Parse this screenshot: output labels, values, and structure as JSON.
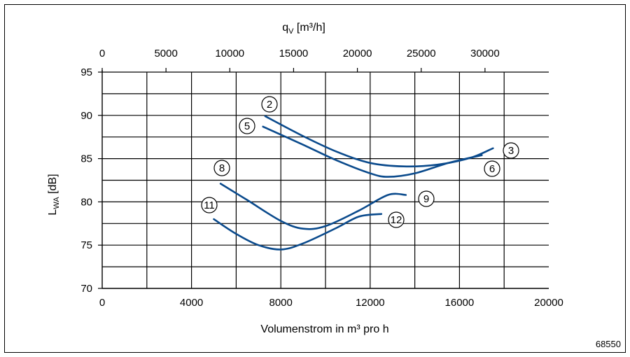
{
  "chart_data": {
    "type": "line",
    "xlabel": "Volumenstrom in m³ pro h",
    "x2label_main": "q",
    "x2label_sub": "V",
    "x2label_unit": " [m³/h]",
    "ylabel_main": "L",
    "ylabel_sub": "WA",
    "ylabel_unit": " [dB]",
    "xlim": [
      0,
      20000
    ],
    "x2lim": [
      0,
      35000
    ],
    "ylim": [
      70,
      95
    ],
    "x_ticks": [
      0,
      4000,
      8000,
      12000,
      16000,
      20000
    ],
    "x2_ticks": [
      0,
      5000,
      10000,
      15000,
      20000,
      25000,
      30000
    ],
    "y_ticks": [
      70,
      75,
      80,
      85,
      90,
      95
    ],
    "grid": true,
    "series": [
      {
        "label": "2",
        "points": [
          [
            7300,
            89.9
          ],
          [
            9000,
            87.6
          ],
          [
            10500,
            85.8
          ],
          [
            12000,
            84.5
          ],
          [
            13500,
            84.1
          ],
          [
            15000,
            84.3
          ],
          [
            16500,
            85.1
          ],
          [
            17500,
            86.2
          ]
        ]
      },
      {
        "label": "3",
        "points": [
          [
            7300,
            89.9
          ],
          [
            9000,
            87.6
          ],
          [
            10500,
            85.8
          ],
          [
            12000,
            84.5
          ],
          [
            13500,
            84.1
          ],
          [
            15000,
            84.3
          ],
          [
            16500,
            85.1
          ],
          [
            17500,
            86.2
          ]
        ]
      },
      {
        "label": "5",
        "points": [
          [
            7200,
            88.7
          ],
          [
            9000,
            86.6
          ],
          [
            10500,
            84.8
          ],
          [
            12000,
            83.3
          ],
          [
            12800,
            82.9
          ],
          [
            14000,
            83.3
          ],
          [
            15500,
            84.5
          ],
          [
            17000,
            85.4
          ]
        ]
      },
      {
        "label": "6",
        "points": [
          [
            7200,
            88.7
          ],
          [
            9000,
            86.6
          ],
          [
            10500,
            84.8
          ],
          [
            12000,
            83.3
          ],
          [
            12800,
            82.9
          ],
          [
            14000,
            83.3
          ],
          [
            15500,
            84.5
          ],
          [
            17000,
            85.4
          ]
        ]
      },
      {
        "label": "8",
        "points": [
          [
            5300,
            82.1
          ],
          [
            6500,
            80.2
          ],
          [
            8000,
            77.8
          ],
          [
            9000,
            76.9
          ],
          [
            10000,
            77.2
          ],
          [
            11500,
            79.0
          ],
          [
            12800,
            80.8
          ],
          [
            13600,
            80.8
          ]
        ]
      },
      {
        "label": "9",
        "points": [
          [
            5300,
            82.1
          ],
          [
            6500,
            80.2
          ],
          [
            8000,
            77.8
          ],
          [
            9000,
            76.9
          ],
          [
            10000,
            77.2
          ],
          [
            11500,
            79.0
          ],
          [
            12800,
            80.8
          ],
          [
            13600,
            80.8
          ]
        ]
      },
      {
        "label": "11",
        "points": [
          [
            5000,
            78.0
          ],
          [
            6000,
            76.3
          ],
          [
            7000,
            75.0
          ],
          [
            8000,
            74.5
          ],
          [
            9000,
            75.2
          ],
          [
            10500,
            77.0
          ],
          [
            11500,
            78.3
          ],
          [
            12500,
            78.6
          ]
        ]
      },
      {
        "label": "12",
        "points": [
          [
            5000,
            78.0
          ],
          [
            6000,
            76.3
          ],
          [
            7000,
            75.0
          ],
          [
            8000,
            74.5
          ],
          [
            9000,
            75.2
          ],
          [
            10500,
            77.0
          ],
          [
            11500,
            78.3
          ],
          [
            12500,
            78.6
          ]
        ]
      }
    ],
    "line_color": "#0a4a8c"
  },
  "figure_id": "68550"
}
